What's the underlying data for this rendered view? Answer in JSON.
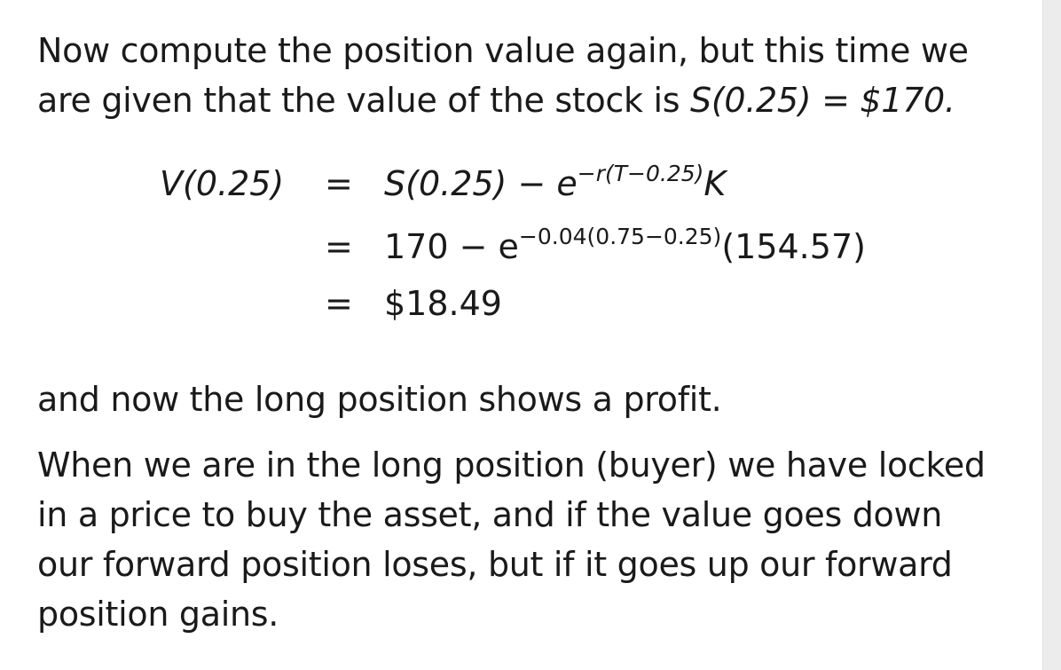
{
  "intro": {
    "line1": "Now compute the position value again, but this time we",
    "line2_prefix": "are given that the value of the stock is ",
    "line2_math": "S(0.25) = $170."
  },
  "equation": {
    "lhs": "V(0.25)",
    "eq_sign": "=",
    "row1": {
      "main": "S(0.25) − e",
      "exponent": "−r(T−0.25)",
      "tail": "K"
    },
    "row2": {
      "main": "170 − e",
      "exponent": "−0.04(0.75−0.25)",
      "tail": "(154.57)"
    },
    "row3": {
      "main": "$18.49"
    }
  },
  "conclusion": "and now the long position shows a profit.",
  "explanation": {
    "line1": "When we are in the long position (buyer) we have locked",
    "line2": "in a price to buy the asset, and if the value goes down",
    "line3": "our forward position loses, but if it goes up our forward",
    "line4": "position gains."
  }
}
